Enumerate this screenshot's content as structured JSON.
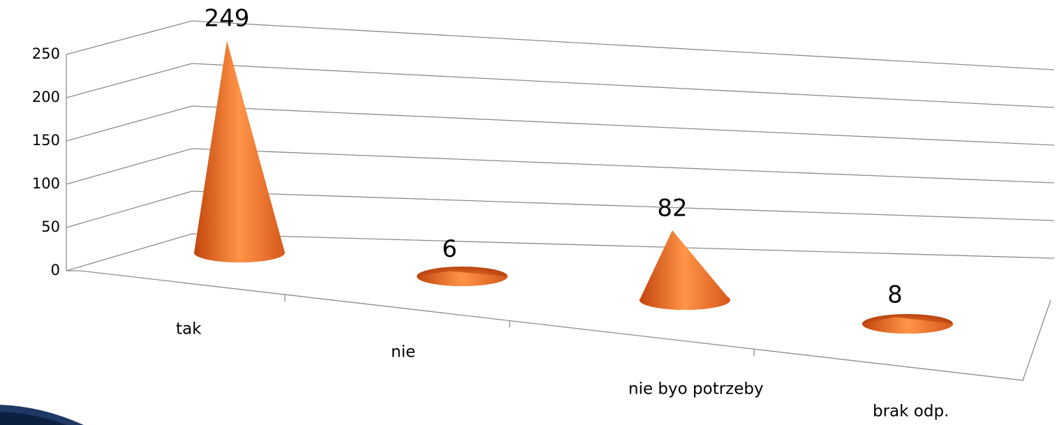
{
  "chart_data": {
    "type": "cone",
    "categories": [
      "tak",
      "nie",
      "nie byo potrzeby",
      "brak odp."
    ],
    "values": [
      249,
      6,
      82,
      8
    ],
    "color": "#f07a2a",
    "ylim": [
      0,
      250
    ],
    "yticks": [
      0,
      50,
      100,
      150,
      200,
      250
    ],
    "grid": true
  }
}
